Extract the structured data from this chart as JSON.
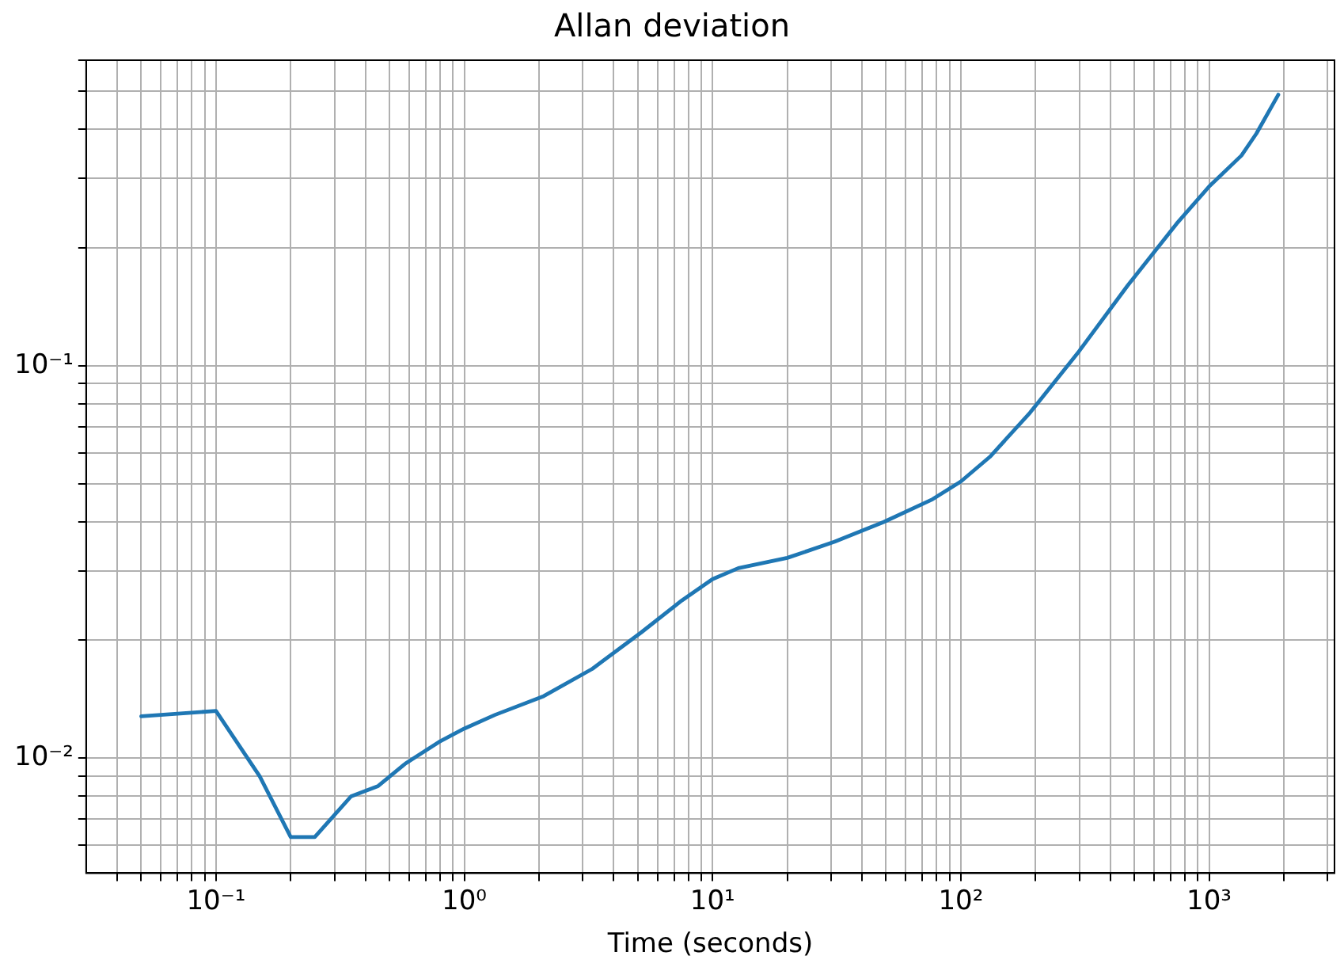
{
  "chart_data": {
    "type": "line",
    "title": "Allan deviation",
    "xlabel": "Time (seconds)",
    "x": [
      0.05,
      0.1,
      0.15,
      0.2,
      0.25,
      0.35,
      0.45,
      0.58,
      0.79,
      1,
      1.33,
      2.09,
      3.28,
      5.15,
      7.5,
      10,
      12.7,
      20,
      31,
      49,
      77,
      100,
      131,
      190,
      300,
      470,
      740,
      1000,
      1350,
      1550,
      1900
    ],
    "series": [
      {
        "color": "#1f77b4",
        "values": [
          0.0128,
          0.0132,
          0.009,
          0.0063,
          0.0063,
          0.008,
          0.0085,
          0.0097,
          0.011,
          0.0119,
          0.0129,
          0.0144,
          0.0169,
          0.0209,
          0.0252,
          0.0286,
          0.0305,
          0.0324,
          0.0356,
          0.04,
          0.0457,
          0.0507,
          0.0586,
          0.0759,
          0.109,
          0.16,
          0.23,
          0.286,
          0.343,
          0.39,
          0.49
        ]
      }
    ],
    "xlim": [
      0.03,
      3200
    ],
    "ylim": [
      0.0051,
      0.6
    ],
    "xticks": [
      {
        "value": 0.04,
        "label": null
      },
      {
        "value": 0.05,
        "label": null
      },
      {
        "value": 0.06,
        "label": null
      },
      {
        "value": 0.07,
        "label": null
      },
      {
        "value": 0.08,
        "label": null
      },
      {
        "value": 0.09,
        "label": null
      },
      {
        "value": 0.1,
        "label": "10⁻¹"
      },
      {
        "value": 0.2,
        "label": null
      },
      {
        "value": 0.3,
        "label": null
      },
      {
        "value": 0.4,
        "label": null
      },
      {
        "value": 0.5,
        "label": null
      },
      {
        "value": 0.6,
        "label": null
      },
      {
        "value": 0.7,
        "label": null
      },
      {
        "value": 0.8,
        "label": null
      },
      {
        "value": 0.9,
        "label": null
      },
      {
        "value": 1,
        "label": "10⁰"
      },
      {
        "value": 2,
        "label": null
      },
      {
        "value": 3,
        "label": null
      },
      {
        "value": 4,
        "label": null
      },
      {
        "value": 5,
        "label": null
      },
      {
        "value": 6,
        "label": null
      },
      {
        "value": 7,
        "label": null
      },
      {
        "value": 8,
        "label": null
      },
      {
        "value": 9,
        "label": null
      },
      {
        "value": 10,
        "label": "10¹"
      },
      {
        "value": 20,
        "label": null
      },
      {
        "value": 30,
        "label": null
      },
      {
        "value": 40,
        "label": null
      },
      {
        "value": 50,
        "label": null
      },
      {
        "value": 60,
        "label": null
      },
      {
        "value": 70,
        "label": null
      },
      {
        "value": 80,
        "label": null
      },
      {
        "value": 90,
        "label": null
      },
      {
        "value": 100,
        "label": "10²"
      },
      {
        "value": 200,
        "label": null
      },
      {
        "value": 300,
        "label": null
      },
      {
        "value": 400,
        "label": null
      },
      {
        "value": 500,
        "label": null
      },
      {
        "value": 600,
        "label": null
      },
      {
        "value": 700,
        "label": null
      },
      {
        "value": 800,
        "label": null
      },
      {
        "value": 900,
        "label": null
      },
      {
        "value": 1000,
        "label": "10³"
      },
      {
        "value": 2000,
        "label": null
      },
      {
        "value": 3000,
        "label": null
      }
    ],
    "yticks": [
      {
        "value": 0.006,
        "label": null
      },
      {
        "value": 0.007,
        "label": null
      },
      {
        "value": 0.008,
        "label": null
      },
      {
        "value": 0.009,
        "label": null
      },
      {
        "value": 0.01,
        "label": "10⁻²"
      },
      {
        "value": 0.02,
        "label": null
      },
      {
        "value": 0.03,
        "label": null
      },
      {
        "value": 0.04,
        "label": null
      },
      {
        "value": 0.05,
        "label": null
      },
      {
        "value": 0.06,
        "label": null
      },
      {
        "value": 0.07,
        "label": null
      },
      {
        "value": 0.08,
        "label": null
      },
      {
        "value": 0.09,
        "label": null
      },
      {
        "value": 0.1,
        "label": "10⁻¹"
      },
      {
        "value": 0.2,
        "label": null
      },
      {
        "value": 0.3,
        "label": null
      },
      {
        "value": 0.4,
        "label": null
      },
      {
        "value": 0.5,
        "label": null
      },
      {
        "value": 0.6,
        "label": null
      }
    ],
    "log": "xy",
    "grid": true,
    "line_style": "solid"
  }
}
